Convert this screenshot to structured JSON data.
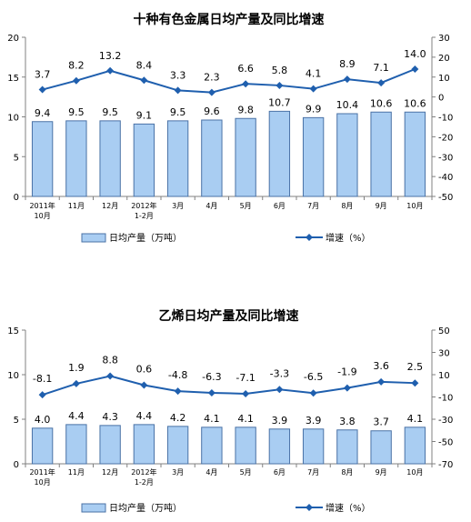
{
  "chart_data": [
    {
      "type": "bar",
      "title": "十种有色金属日均产量及同比增速",
      "categories": [
        [
          "2011年",
          "10月"
        ],
        [
          "11月"
        ],
        [
          "12月"
        ],
        [
          "2012年",
          "1-2月"
        ],
        [
          "3月"
        ],
        [
          "4月"
        ],
        [
          "5月"
        ],
        [
          "6月"
        ],
        [
          "7月"
        ],
        [
          "8月"
        ],
        [
          "9月"
        ],
        [
          "10月"
        ]
      ],
      "series": [
        {
          "name": "日均产量（万吨）",
          "kind": "bar",
          "axis": "left",
          "values": [
            9.4,
            9.5,
            9.5,
            9.1,
            9.5,
            9.6,
            9.8,
            10.7,
            9.9,
            10.4,
            10.6,
            10.6
          ],
          "labels": [
            "9.4",
            "9.5",
            "9.5",
            "9.1",
            "9.5",
            "9.6",
            "9.8",
            "10.7",
            "9.9",
            "10.4",
            "10.6",
            "10.6"
          ]
        },
        {
          "name": "增速（%）",
          "kind": "line",
          "axis": "right",
          "values": [
            3.7,
            8.2,
            13.2,
            8.4,
            3.3,
            2.3,
            6.6,
            5.8,
            4.1,
            8.9,
            7.1,
            14.0
          ],
          "labels": [
            "3.7",
            "8.2",
            "13.2",
            "8.4",
            "3.3",
            "2.3",
            "6.6",
            "5.8",
            "4.1",
            "8.9",
            "7.1",
            "14.0"
          ]
        }
      ],
      "y_left": {
        "min": 0,
        "max": 20,
        "ticks": [
          "0",
          "5",
          "10",
          "15",
          "20"
        ]
      },
      "y_right": {
        "min": -50,
        "max": 30,
        "ticks": [
          "-50",
          "-40",
          "-30",
          "-20",
          "-10",
          "0",
          "10",
          "20",
          "30"
        ]
      },
      "legend": "bottom",
      "grid": false
    },
    {
      "type": "bar",
      "title": "乙烯日均产量及同比增速",
      "categories": [
        [
          "2011年",
          "10月"
        ],
        [
          "11月"
        ],
        [
          "12月"
        ],
        [
          "2012年",
          "1-2月"
        ],
        [
          "3月"
        ],
        [
          "4月"
        ],
        [
          "5月"
        ],
        [
          "6月"
        ],
        [
          "7月"
        ],
        [
          "8月"
        ],
        [
          "9月"
        ],
        [
          "10月"
        ]
      ],
      "series": [
        {
          "name": "日均产量（万吨）",
          "kind": "bar",
          "axis": "left",
          "values": [
            4.0,
            4.4,
            4.3,
            4.4,
            4.2,
            4.1,
            4.1,
            3.9,
            3.9,
            3.8,
            3.7,
            4.1
          ],
          "labels": [
            "4.0",
            "4.4",
            "4.3",
            "4.4",
            "4.2",
            "4.1",
            "4.1",
            "3.9",
            "3.9",
            "3.8",
            "3.7",
            "4.1"
          ]
        },
        {
          "name": "增速（%）",
          "kind": "line",
          "axis": "right",
          "values": [
            -8.1,
            1.9,
            8.8,
            0.6,
            -4.8,
            -6.3,
            -7.1,
            -3.3,
            -6.5,
            -1.9,
            3.6,
            2.5
          ],
          "labels": [
            "-8.1",
            "1.9",
            "8.8",
            "0.6",
            "-4.8",
            "-6.3",
            "-7.1",
            "-3.3",
            "-6.5",
            "-1.9",
            "3.6",
            "2.5"
          ]
        }
      ],
      "y_left": {
        "min": 0,
        "max": 15,
        "ticks": [
          "0",
          "5",
          "10",
          "15"
        ]
      },
      "y_right": {
        "min": -70,
        "max": 50,
        "ticks": [
          "-70",
          "-50",
          "-30",
          "-10",
          "10",
          "30",
          "50"
        ]
      },
      "legend": "bottom",
      "grid": false,
      "colors": {
        "bar_fill": "#a9cdf2",
        "bar_stroke": "#4a72a6",
        "line": "#1f5fae"
      }
    }
  ]
}
